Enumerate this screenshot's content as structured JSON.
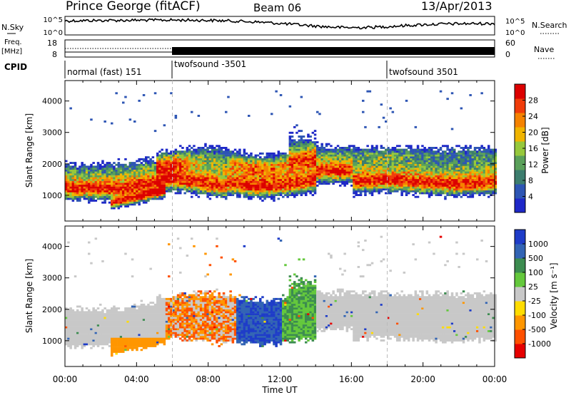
{
  "header": {
    "station": "Prince George (fitACF)",
    "beam": "Beam 06",
    "date": "13/Apr/2013"
  },
  "top_panels": {
    "nsky_label": "N.Sky",
    "nsky_ticks": [
      "10^5",
      "10^0"
    ],
    "nsearch_label": "N.Search",
    "nsearch_ticks": [
      "10^5",
      "10^0"
    ],
    "freq_label_1": "Freq.",
    "freq_label_2": "[MHz]",
    "freq_ticks": [
      "18",
      "8"
    ],
    "nave_label": "Nave",
    "nave_ticks": [
      "60",
      "0"
    ],
    "cpid_label": "CPID",
    "cpid_segments": [
      {
        "label": "normal (fast) 151"
      },
      {
        "label": "twofsound -3501"
      },
      {
        "label": "twofsound 3501"
      }
    ]
  },
  "chart_data": [
    {
      "type": "heatmap",
      "title": "",
      "xlabel": "Time UT",
      "ylabel": "Slant Range [km]",
      "x_tick_labels": [
        "00:00",
        "04:00",
        "08:00",
        "12:00",
        "16:00",
        "20:00",
        "00:00"
      ],
      "x_range_hours": [
        0,
        24
      ],
      "y_ticks": [
        1000,
        2000,
        3000,
        4000
      ],
      "ylim": [
        180,
        4650
      ],
      "colorbar": {
        "label": "Power [dB]",
        "ticks": [
          4,
          8,
          12,
          16,
          20,
          24,
          28
        ],
        "range": [
          0,
          32
        ],
        "colors": [
          "#1e28c8",
          "#2d55b4",
          "#3c7d6e",
          "#5aa05a",
          "#96c83c",
          "#f0b400",
          "#f58200",
          "#f03c0a",
          "#dc0000"
        ]
      },
      "vertical_markers_hours": [
        6,
        18
      ]
    },
    {
      "type": "heatmap",
      "title": "",
      "xlabel": "Time UT",
      "ylabel": "Slant Range [km]",
      "x_tick_labels": [
        "00:00",
        "04:00",
        "08:00",
        "12:00",
        "16:00",
        "20:00",
        "00:00"
      ],
      "x_range_hours": [
        0,
        24
      ],
      "y_ticks": [
        1000,
        2000,
        3000,
        4000
      ],
      "ylim": [
        180,
        4650
      ],
      "colorbar": {
        "label": "Velocity [m s⁻¹]",
        "ticks": [
          "1000",
          "500",
          "100",
          "25",
          "-25",
          "-100",
          "-500",
          "-1000"
        ],
        "colors": [
          "#1e3cc8",
          "#3264b4",
          "#3c8c50",
          "#64c83c",
          "#c8c8c8",
          "#ffdc00",
          "#ff9600",
          "#ff5000",
          "#e60000"
        ]
      },
      "vertical_markers_hours": [
        6,
        18
      ]
    }
  ]
}
